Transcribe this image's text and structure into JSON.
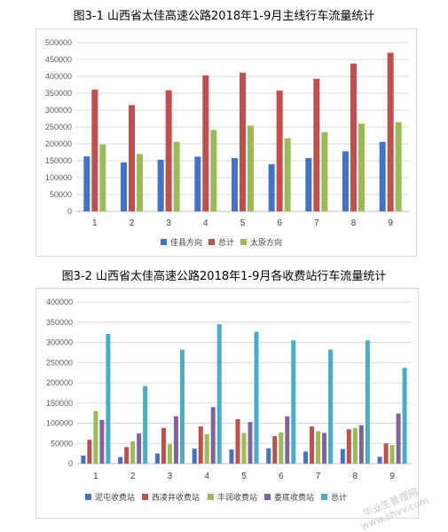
{
  "titles": {
    "chart1": "图3-1  山西省太佳高速公路2018年1-9月主线行车流量统计",
    "chart2": "图3-2  山西省太佳高速公路2018年1-9月各收费站行车流量统计"
  },
  "watermark": {
    "line1": "毕业生管理网",
    "line2": "www.shvv.com"
  },
  "chart_data": [
    {
      "type": "bar",
      "title": "图3-1  山西省太佳高速公路2018年1-9月主线行车流量统计",
      "categories": [
        "1",
        "2",
        "3",
        "4",
        "5",
        "6",
        "7",
        "8",
        "9"
      ],
      "yticks": [
        "0",
        "50000",
        "100000",
        "150000",
        "200000",
        "250000",
        "300000",
        "350000",
        "400000",
        "450000",
        "500000"
      ],
      "ylim": [
        0,
        500000
      ],
      "grid": true,
      "legend_position": "bottom",
      "series": [
        {
          "name": "佳县方向",
          "color": "#4472C4",
          "values": [
            163000,
            145000,
            153000,
            162000,
            158000,
            140000,
            158000,
            178000,
            206000
          ]
        },
        {
          "name": "总计",
          "color": "#C0504D",
          "values": [
            361000,
            315000,
            359000,
            403000,
            411000,
            358000,
            393000,
            438000,
            470000
          ]
        },
        {
          "name": "太原方向",
          "color": "#9BBB59",
          "values": [
            198000,
            170000,
            206000,
            241000,
            254000,
            217000,
            235000,
            260000,
            264000
          ]
        }
      ]
    },
    {
      "type": "bar",
      "title": "图3-2  山西省太佳高速公路2018年1-9月各收费站行车流量统计",
      "categories": [
        "1",
        "2",
        "3",
        "4",
        "5",
        "6",
        "7",
        "8",
        "9"
      ],
      "yticks": [
        "0",
        "50000",
        "100000",
        "150000",
        "200000",
        "250000",
        "300000",
        "350000",
        "400000"
      ],
      "ylim": [
        0,
        400000
      ],
      "grid": true,
      "legend_position": "bottom",
      "series": [
        {
          "name": "泥屯收费站",
          "color": "#4472C4",
          "values": [
            20000,
            16000,
            25000,
            37000,
            35000,
            38000,
            30000,
            36000,
            17000
          ]
        },
        {
          "name": "西凌井收费站",
          "color": "#C0504D",
          "values": [
            59000,
            41000,
            88000,
            92000,
            110000,
            68000,
            92000,
            85000,
            50000
          ]
        },
        {
          "name": "丰润收费站",
          "color": "#9BBB59",
          "values": [
            130000,
            55000,
            48000,
            73000,
            76000,
            77000,
            80000,
            88000,
            46000
          ]
        },
        {
          "name": "娄底收费站",
          "color": "#8064A2",
          "values": [
            108000,
            75000,
            117000,
            140000,
            103000,
            117000,
            76000,
            95000,
            124000
          ]
        },
        {
          "name": "总计",
          "color": "#4BACC6",
          "values": [
            321000,
            192000,
            282000,
            345000,
            326000,
            305000,
            282000,
            305000,
            237000
          ]
        }
      ]
    }
  ]
}
